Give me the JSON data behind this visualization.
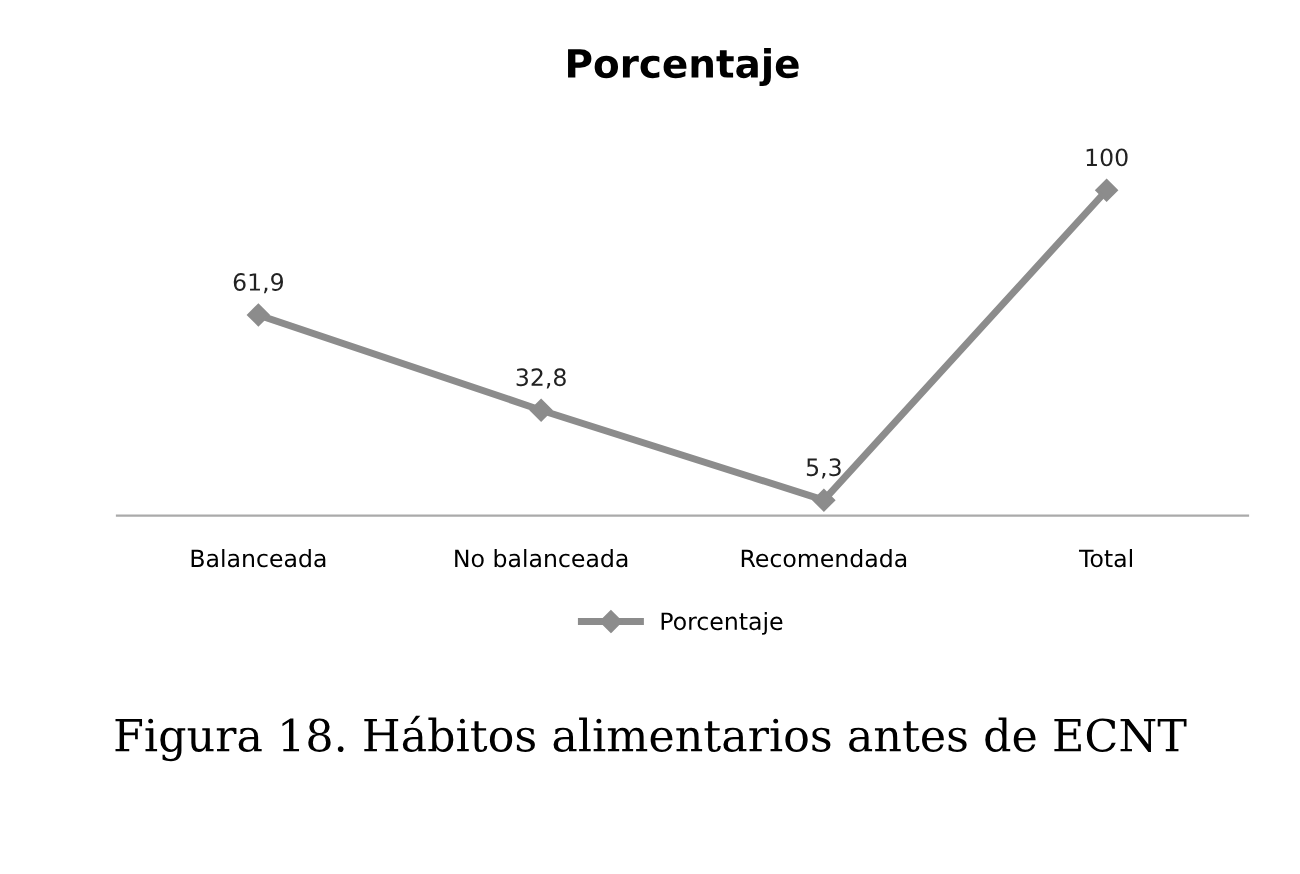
{
  "chart_data": {
    "type": "line",
    "title": "Porcentaje",
    "categories": [
      "Balanceada",
      "No balanceada",
      "Recomendada",
      "Total"
    ],
    "series": [
      {
        "name": "Porcentaje",
        "color": "#8c8c8c",
        "values": [
          61.9,
          32.8,
          5.3,
          100
        ],
        "value_labels": [
          "61,9",
          "32,8",
          "5,3",
          "100"
        ]
      }
    ],
    "marker": "diamond",
    "line_style": "solid",
    "grid": false,
    "legend": "bottom",
    "annotations": [
      "Figura 18. Hábitos alimentarios antes de ECNT"
    ]
  }
}
